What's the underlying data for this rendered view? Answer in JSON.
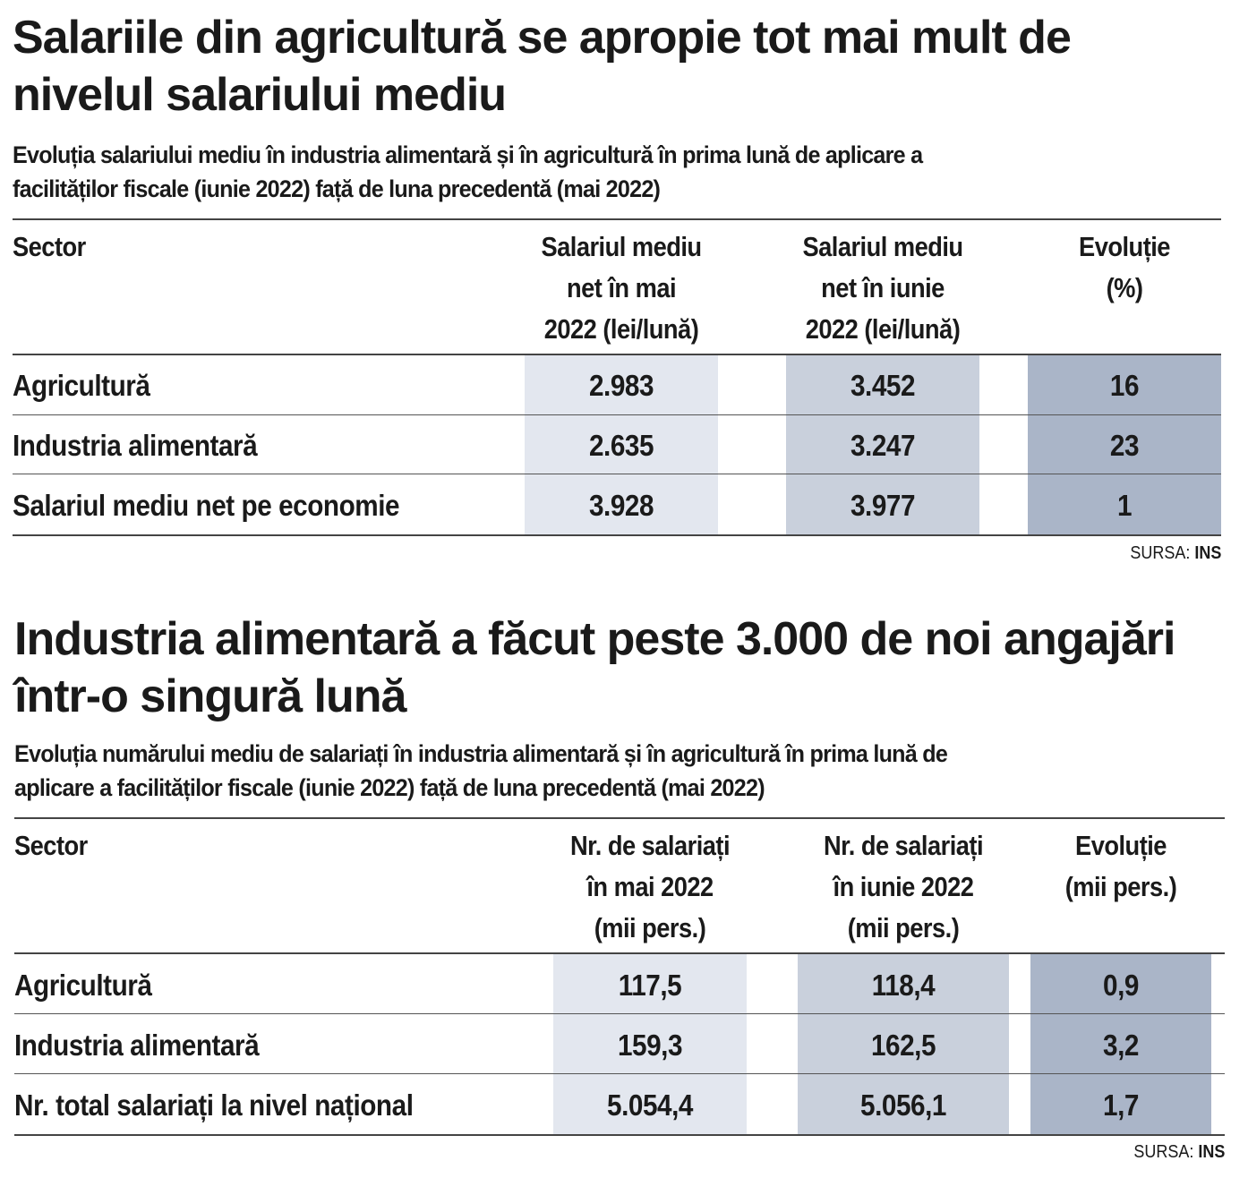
{
  "tables": [
    {
      "title_line1": "Salariile din agricultură se apropie tot mai mult de",
      "title_line2": "nivelul salariului mediu",
      "subtitle_line1": "Evoluția salariului mediu în industria alimentară și în agricultură în prima lună de aplicare a",
      "subtitle_line2": "facilităților fiscale (iunie 2022) față de luna precedentă (mai 2022)",
      "headers": {
        "sector": "Sector",
        "col1": [
          "Salariul mediu",
          "net în mai",
          "2022 (lei/lună)"
        ],
        "col2": [
          "Salariul mediu",
          "net în iunie",
          "2022 (lei/lună)"
        ],
        "col3": [
          "Evoluție",
          "(%)"
        ]
      },
      "rows": [
        {
          "sector": "Agricultură",
          "v1": "2.983",
          "v2": "3.452",
          "v3": "16"
        },
        {
          "sector": "Industria alimentară",
          "v1": "2.635",
          "v2": "3.247",
          "v3": "23"
        },
        {
          "sector": "Salariul mediu net pe economie",
          "v1": "3.928",
          "v2": "3.977",
          "v3": "1"
        }
      ],
      "source_label": "SURSA:",
      "source_value": "INS"
    },
    {
      "title_line1": "Industria alimentară a făcut peste 3.000 de noi angajări",
      "title_line2": "într-o singură lună",
      "subtitle_line1": "Evoluția numărului mediu de salariați în industria alimentară și în agricultură în prima lună de",
      "subtitle_line2": "aplicare a facilităților fiscale (iunie 2022) față de luna precedentă (mai 2022)",
      "headers": {
        "sector": "Sector",
        "col1": [
          "Nr. de salariați",
          "în mai 2022",
          "(mii pers.)"
        ],
        "col2": [
          "Nr. de salariați",
          "în iunie 2022",
          "(mii pers.)"
        ],
        "col3": [
          "Evoluție",
          "(mii pers.)"
        ]
      },
      "rows": [
        {
          "sector": "Agricultură",
          "v1": "117,5",
          "v2": "118,4",
          "v3": "0,9"
        },
        {
          "sector": "Industria alimentară",
          "v1": "159,3",
          "v2": "162,5",
          "v3": "3,2"
        },
        {
          "sector": "Nr. total salariați la nivel național",
          "v1": "5.054,4",
          "v2": "5.056,1",
          "v3": "1,7"
        }
      ],
      "source_label": "SURSA:",
      "source_value": "INS"
    }
  ],
  "colors": {
    "column1_fill": "#e3e7ef",
    "column2_fill": "#c9d0dc",
    "column3_fill": "#aab5c8"
  }
}
